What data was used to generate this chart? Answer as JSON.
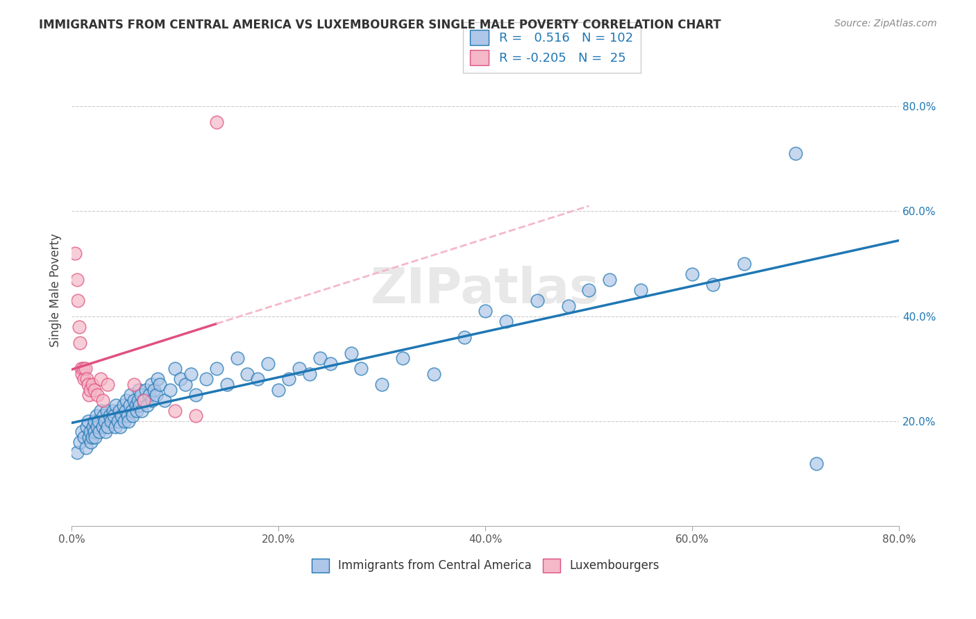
{
  "title": "IMMIGRANTS FROM CENTRAL AMERICA VS LUXEMBOURGER SINGLE MALE POVERTY CORRELATION CHART",
  "source": "Source: ZipAtlas.com",
  "xlabel": "",
  "ylabel": "Single Male Poverty",
  "r_blue": 0.516,
  "n_blue": 102,
  "r_pink": -0.205,
  "n_pink": 25,
  "xlim": [
    0,
    0.8
  ],
  "ylim": [
    0,
    0.9
  ],
  "xtick_labels": [
    "0.0%",
    "20.0%",
    "40.0%",
    "60.0%",
    "80.0%"
  ],
  "xtick_values": [
    0.0,
    0.2,
    0.4,
    0.6,
    0.8
  ],
  "ytick_labels": [
    "20.0%",
    "40.0%",
    "60.0%",
    "80.0%"
  ],
  "ytick_values": [
    0.2,
    0.4,
    0.6,
    0.8
  ],
  "color_blue": "#aec6e8",
  "color_blue_line": "#1f77b4",
  "color_pink": "#f4b8c8",
  "color_pink_line": "#e05080",
  "color_pink_trend_dash": "#f4b8c8",
  "watermark": "ZIPatlas",
  "blue_scatter_x": [
    0.005,
    0.008,
    0.01,
    0.012,
    0.014,
    0.015,
    0.016,
    0.017,
    0.018,
    0.019,
    0.02,
    0.021,
    0.022,
    0.022,
    0.023,
    0.024,
    0.025,
    0.026,
    0.027,
    0.028,
    0.03,
    0.031,
    0.032,
    0.033,
    0.034,
    0.035,
    0.037,
    0.038,
    0.04,
    0.041,
    0.042,
    0.043,
    0.045,
    0.046,
    0.047,
    0.048,
    0.05,
    0.051,
    0.052,
    0.053,
    0.054,
    0.055,
    0.056,
    0.057,
    0.058,
    0.059,
    0.06,
    0.062,
    0.063,
    0.064,
    0.065,
    0.066,
    0.067,
    0.068,
    0.07,
    0.072,
    0.073,
    0.075,
    0.077,
    0.078,
    0.08,
    0.082,
    0.083,
    0.085,
    0.09,
    0.095,
    0.1,
    0.105,
    0.11,
    0.115,
    0.12,
    0.13,
    0.14,
    0.15,
    0.16,
    0.17,
    0.18,
    0.19,
    0.2,
    0.21,
    0.22,
    0.23,
    0.24,
    0.25,
    0.27,
    0.28,
    0.3,
    0.32,
    0.35,
    0.38,
    0.4,
    0.42,
    0.45,
    0.48,
    0.5,
    0.52,
    0.55,
    0.6,
    0.62,
    0.65,
    0.7,
    0.72
  ],
  "blue_scatter_y": [
    0.14,
    0.16,
    0.18,
    0.17,
    0.15,
    0.19,
    0.2,
    0.17,
    0.18,
    0.16,
    0.17,
    0.19,
    0.18,
    0.2,
    0.17,
    0.21,
    0.19,
    0.2,
    0.18,
    0.22,
    0.19,
    0.21,
    0.2,
    0.18,
    0.22,
    0.19,
    0.21,
    0.2,
    0.22,
    0.21,
    0.19,
    0.23,
    0.2,
    0.22,
    0.19,
    0.21,
    0.23,
    0.2,
    0.22,
    0.24,
    0.21,
    0.2,
    0.23,
    0.25,
    0.22,
    0.21,
    0.24,
    0.23,
    0.22,
    0.24,
    0.26,
    0.23,
    0.25,
    0.22,
    0.24,
    0.26,
    0.23,
    0.25,
    0.27,
    0.24,
    0.26,
    0.25,
    0.28,
    0.27,
    0.24,
    0.26,
    0.3,
    0.28,
    0.27,
    0.29,
    0.25,
    0.28,
    0.3,
    0.27,
    0.32,
    0.29,
    0.28,
    0.31,
    0.26,
    0.28,
    0.3,
    0.29,
    0.32,
    0.31,
    0.33,
    0.3,
    0.27,
    0.32,
    0.29,
    0.36,
    0.41,
    0.39,
    0.43,
    0.42,
    0.45,
    0.47,
    0.45,
    0.48,
    0.46,
    0.5,
    0.71,
    0.12
  ],
  "pink_scatter_x": [
    0.003,
    0.005,
    0.006,
    0.007,
    0.008,
    0.009,
    0.01,
    0.011,
    0.012,
    0.013,
    0.015,
    0.016,
    0.017,
    0.018,
    0.02,
    0.022,
    0.025,
    0.028,
    0.03,
    0.035,
    0.06,
    0.07,
    0.1,
    0.12,
    0.14
  ],
  "pink_scatter_y": [
    0.52,
    0.47,
    0.43,
    0.38,
    0.35,
    0.3,
    0.29,
    0.3,
    0.28,
    0.3,
    0.28,
    0.27,
    0.25,
    0.26,
    0.27,
    0.26,
    0.25,
    0.28,
    0.24,
    0.27,
    0.27,
    0.24,
    0.22,
    0.21,
    0.77
  ]
}
